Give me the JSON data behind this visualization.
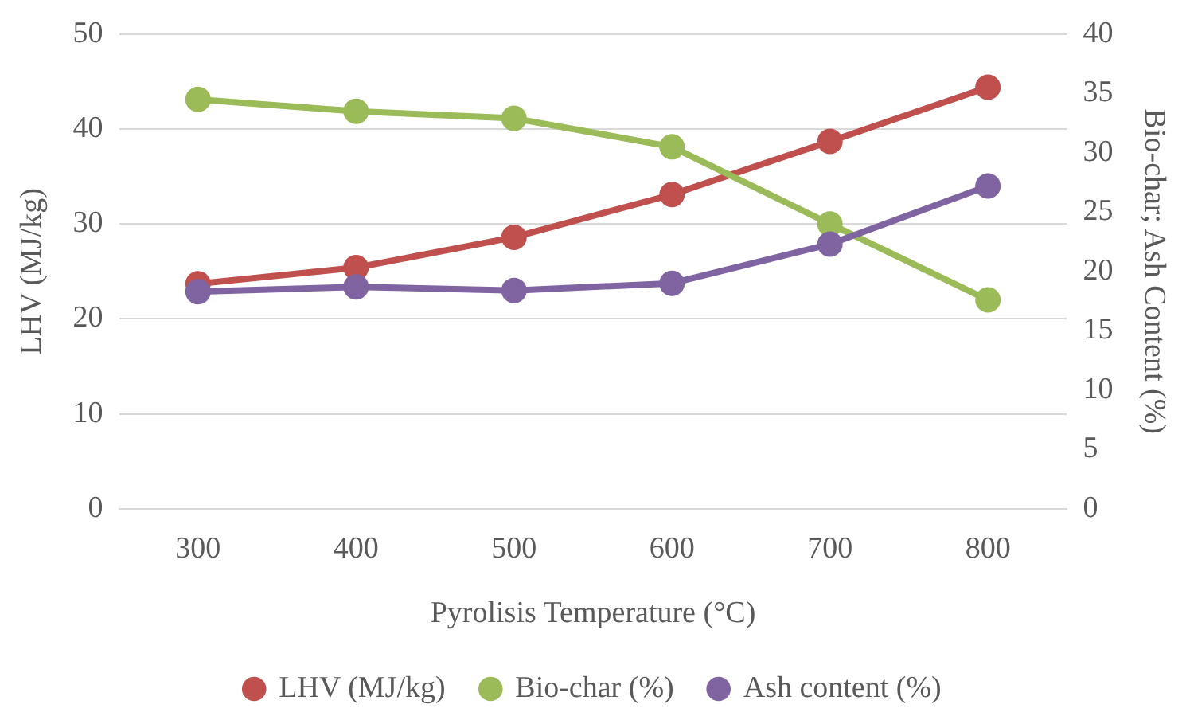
{
  "chart_data": {
    "type": "line",
    "xlabel": "Pyrolisis Temperature (°C)",
    "ylabel": "LHV (MJ/kg)",
    "y2label": "Bio-char; Ash Content (%)",
    "categories": [
      "300",
      "400",
      "500",
      "600",
      "700",
      "800"
    ],
    "series": [
      {
        "name": "LHV (MJ/kg)",
        "color": "#c0504d",
        "values": [
          23.7,
          25.4,
          28.6,
          33.1,
          38.7,
          44.4
        ]
      },
      {
        "name": "Bio-char (%)",
        "color": "#9bbb59",
        "axis": "y2",
        "values": [
          34.5,
          33.5,
          32.9,
          30.5,
          24.0,
          17.6
        ]
      },
      {
        "name": "Ash content (%)",
        "color": "#8064a2",
        "axis": "y2",
        "values": [
          18.3,
          18.7,
          18.4,
          19.0,
          22.3,
          27.2
        ]
      }
    ],
    "ylim": [
      0,
      50
    ],
    "yticks": [
      0,
      10,
      20,
      30,
      40,
      50
    ],
    "y2lim": [
      0,
      40
    ],
    "y2ticks": [
      0,
      5,
      10,
      15,
      20,
      25,
      30,
      35,
      40
    ],
    "grid": "y",
    "legend": "bottom",
    "marker": "circle",
    "line_style": "solid"
  }
}
